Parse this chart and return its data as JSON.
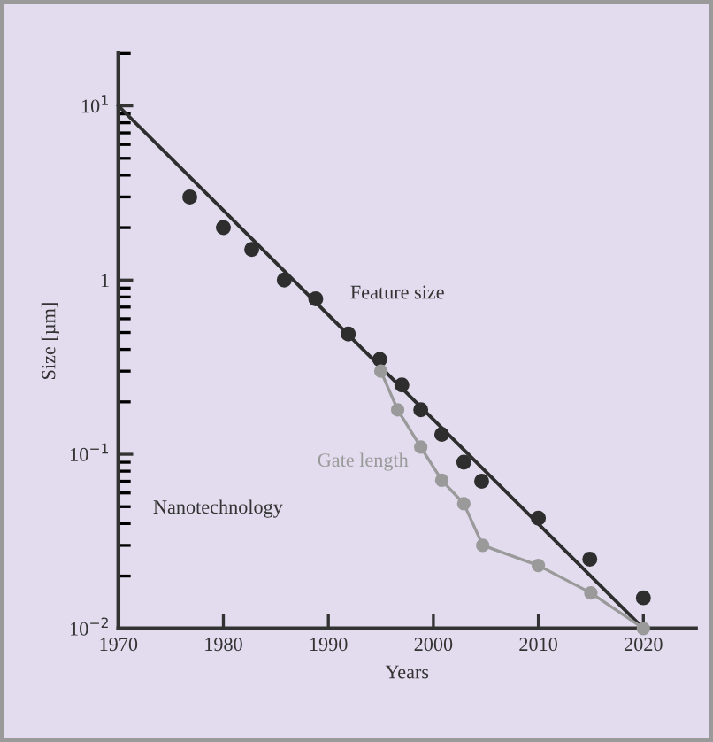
{
  "chart_data": {
    "type": "scatter",
    "xlabel": "Years",
    "ylabel": "Size [µm]",
    "log": "y",
    "xlim": [
      1970,
      2025
    ],
    "ylim": [
      0.01,
      20
    ],
    "xticks": [
      1970,
      1980,
      1990,
      2000,
      2010,
      2020
    ],
    "yticks": [
      {
        "value": 10,
        "label": "10$^{1}$"
      },
      {
        "value": 1,
        "label": "1"
      },
      {
        "value": 0.1,
        "label": "10$^{−1}$"
      },
      {
        "value": 0.01,
        "label": "10$^{−2}$"
      }
    ],
    "grid": false,
    "legend": false,
    "marker": "circle",
    "annotations": [
      "Nanotechnology"
    ],
    "series": [
      {
        "type": "line",
        "color": "#2e2e2e",
        "x": [
          1970,
          2020
        ],
        "values": [
          10,
          0.01
        ],
        "marker": "none"
      },
      {
        "name": "Feature size",
        "color": "#2e2e2e",
        "x": [
          1976.8,
          1980,
          1982.7,
          1985.8,
          1988.8,
          1991.9,
          1994.9,
          1997,
          1998.8,
          2000.8,
          2002.9,
          2004.6,
          2010,
          2014.9,
          2020
        ],
        "values": [
          3.0,
          2.0,
          1.5,
          1.0,
          0.78,
          0.49,
          0.35,
          0.25,
          0.18,
          0.13,
          0.09,
          0.07,
          0.043,
          0.025,
          0.015
        ]
      },
      {
        "type": "line",
        "name": "Gate length",
        "color": "#9a9a9a",
        "x": [
          1995,
          1996.6,
          1998.8,
          2000.8,
          2002.9,
          2004.7,
          2010,
          2015,
          2020
        ],
        "values": [
          0.3,
          0.18,
          0.11,
          0.071,
          0.052,
          0.03,
          0.023,
          0.016,
          0.01
        ]
      }
    ]
  }
}
